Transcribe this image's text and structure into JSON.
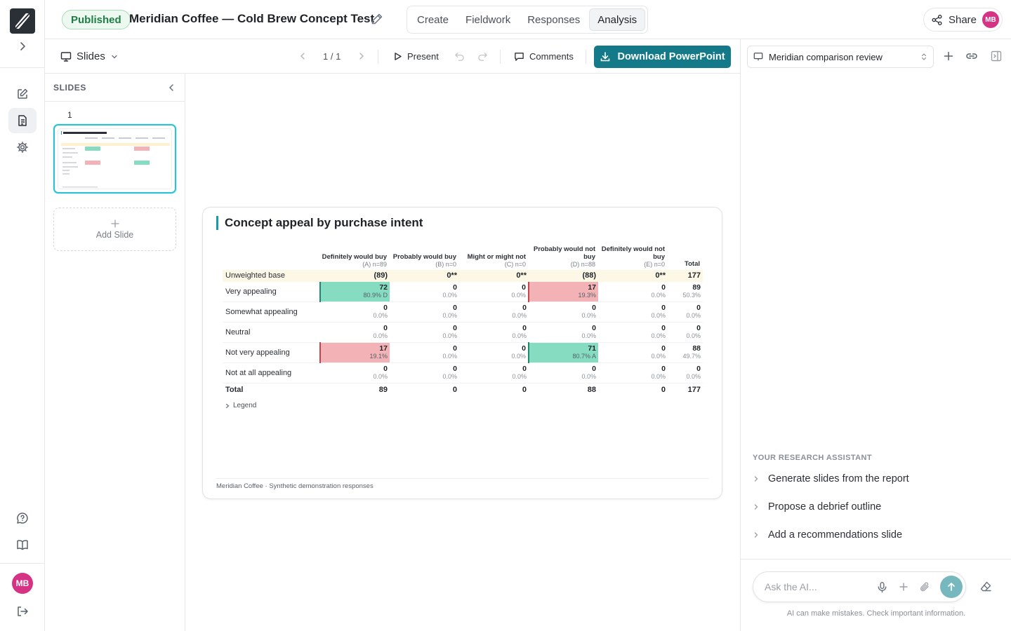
{
  "rail": {
    "avatar_initials": "MB"
  },
  "header": {
    "status_badge": "Published",
    "project_title": "Meridian Coffee — Cold Brew Concept Test",
    "tabs": [
      "Create",
      "Fieldwork",
      "Responses",
      "Analysis"
    ],
    "active_tab": "Analysis",
    "share_label": "Share",
    "avatar_initials": "MB"
  },
  "toolbar": {
    "view_label": "Slides",
    "page_indicator": "1 / 1",
    "present_label": "Present",
    "comments_label": "Comments",
    "download_label": "Download PowerPoint",
    "accent_color": "#147a8a"
  },
  "slides_panel": {
    "heading": "SLIDES",
    "slide_numbers": [
      "1"
    ],
    "add_slide_label": "Add Slide"
  },
  "slide": {
    "title": "Concept appeal by purchase intent",
    "columns": [
      {
        "label": "Definitely would buy",
        "sub": "(A) n=89"
      },
      {
        "label": "Probably would buy",
        "sub": "(B) n=0"
      },
      {
        "label": "Might or might not",
        "sub": "(C) n=0"
      },
      {
        "label": "Probably would not buy",
        "sub": "(D) n=88"
      },
      {
        "label": "Definitely would not buy",
        "sub": "(E) n=0"
      },
      {
        "label": "Total",
        "sub": ""
      }
    ],
    "base_row": {
      "label": "Unweighted base",
      "values": [
        "(89)",
        "0**",
        "0**",
        "(88)",
        "0**",
        "177"
      ]
    },
    "rows": [
      {
        "label": "Very appealing",
        "cells": [
          {
            "n": "72",
            "p": "80.9% D",
            "hl": "green"
          },
          {
            "n": "0",
            "p": "0.0%"
          },
          {
            "n": "0",
            "p": "0.0%"
          },
          {
            "n": "17",
            "p": "19.3%",
            "hl": "red"
          },
          {
            "n": "0",
            "p": "0.0%"
          },
          {
            "n": "89",
            "p": "50.3%"
          }
        ]
      },
      {
        "label": "Somewhat appealing",
        "cells": [
          {
            "n": "0",
            "p": "0.0%"
          },
          {
            "n": "0",
            "p": "0.0%"
          },
          {
            "n": "0",
            "p": "0.0%"
          },
          {
            "n": "0",
            "p": "0.0%"
          },
          {
            "n": "0",
            "p": "0.0%"
          },
          {
            "n": "0",
            "p": "0.0%"
          }
        ]
      },
      {
        "label": "Neutral",
        "cells": [
          {
            "n": "0",
            "p": "0.0%"
          },
          {
            "n": "0",
            "p": "0.0%"
          },
          {
            "n": "0",
            "p": "0.0%"
          },
          {
            "n": "0",
            "p": "0.0%"
          },
          {
            "n": "0",
            "p": "0.0%"
          },
          {
            "n": "0",
            "p": "0.0%"
          }
        ]
      },
      {
        "label": "Not very appealing",
        "cells": [
          {
            "n": "17",
            "p": "19.1%",
            "hl": "red"
          },
          {
            "n": "0",
            "p": "0.0%"
          },
          {
            "n": "0",
            "p": "0.0%"
          },
          {
            "n": "71",
            "p": "80.7% A",
            "hl": "green"
          },
          {
            "n": "0",
            "p": "0.0%"
          },
          {
            "n": "88",
            "p": "49.7%"
          }
        ]
      },
      {
        "label": "Not at all appealing",
        "cells": [
          {
            "n": "0",
            "p": "0.0%"
          },
          {
            "n": "0",
            "p": "0.0%"
          },
          {
            "n": "0",
            "p": "0.0%"
          },
          {
            "n": "0",
            "p": "0.0%"
          },
          {
            "n": "0",
            "p": "0.0%"
          },
          {
            "n": "0",
            "p": "0.0%"
          }
        ]
      }
    ],
    "total_row": {
      "label": "Total",
      "values": [
        "89",
        "0",
        "0",
        "88",
        "0",
        "177"
      ]
    },
    "legend_label": "Legend",
    "footer": "Meridian Coffee · Synthetic demonstration responses",
    "highlight_colors": {
      "green": "#86dcc0",
      "red": "#f3b3b6"
    }
  },
  "assistant": {
    "conversation": "Meridian comparison review",
    "section_label": "YOUR RESEARCH ASSISTANT",
    "suggestions": [
      "Generate slides from the report",
      "Propose a debrief outline",
      "Add a recommendations slide"
    ],
    "input_placeholder": "Ask the AI...",
    "disclaimer": "AI can make mistakes. Check important information."
  }
}
